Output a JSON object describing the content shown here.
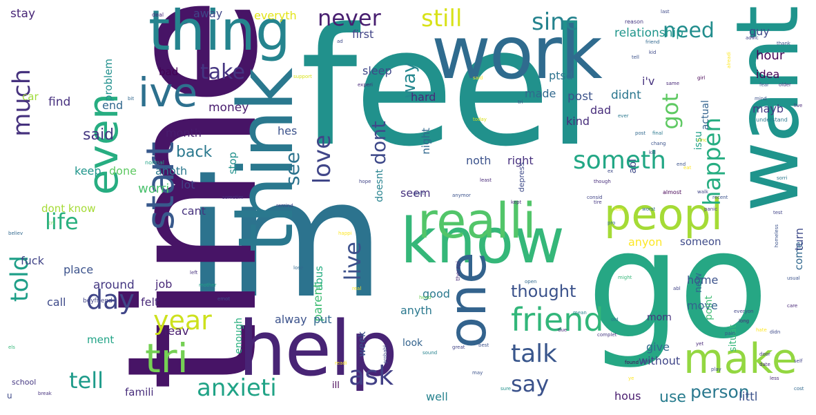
{
  "words": [
    {
      "text": "feel",
      "color": "#21918c"
    },
    {
      "text": "go",
      "color": "#26a784"
    },
    {
      "text": "im",
      "color": "#2c738e"
    },
    {
      "text": "time",
      "color": "#471466"
    },
    {
      "text": "work",
      "color": "#2f6b8e"
    },
    {
      "text": "help",
      "color": "#482475"
    },
    {
      "text": "know",
      "color": "#35b779"
    },
    {
      "text": "want",
      "color": "#1f948c"
    },
    {
      "text": "thing",
      "color": "#25848e"
    },
    {
      "text": "think",
      "color": "#2a788e"
    },
    {
      "text": "one",
      "color": "#33638d"
    },
    {
      "text": "realli",
      "color": "#52c569"
    },
    {
      "text": "peopl",
      "color": "#a5db36"
    },
    {
      "text": "ive",
      "color": "#2d708e"
    },
    {
      "text": "even",
      "color": "#27ad81"
    },
    {
      "text": "start",
      "color": "#38598c"
    },
    {
      "text": "tri",
      "color": "#75d054"
    },
    {
      "text": "make",
      "color": "#93d741"
    },
    {
      "text": "friend",
      "color": "#32b67a"
    },
    {
      "text": "told",
      "color": "#1f9f88"
    },
    {
      "text": "year",
      "color": "#cde11d"
    },
    {
      "text": "day",
      "color": "#404688"
    },
    {
      "text": "talk",
      "color": "#39568c"
    },
    {
      "text": "anxieti",
      "color": "#20a386"
    },
    {
      "text": "ask",
      "color": "#424086"
    },
    {
      "text": "tell",
      "color": "#1e9b8a"
    },
    {
      "text": "say",
      "color": "#3b528b"
    },
    {
      "text": "person",
      "color": "#2a788e"
    },
    {
      "text": "life",
      "color": "#2ab07f"
    },
    {
      "text": "love",
      "color": "#404688"
    },
    {
      "text": "live",
      "color": "#3c508b"
    },
    {
      "text": "dont",
      "color": "#3e4989"
    },
    {
      "text": "see",
      "color": "#2c738e"
    },
    {
      "text": "take",
      "color": "#453581"
    },
    {
      "text": "need",
      "color": "#228d8d"
    },
    {
      "text": "never",
      "color": "#481f70"
    },
    {
      "text": "still",
      "color": "#d8e219"
    },
    {
      "text": "sinc",
      "color": "#25838e"
    },
    {
      "text": "much",
      "color": "#46327e"
    },
    {
      "text": "got",
      "color": "#5ec962"
    },
    {
      "text": "happen",
      "color": "#26ad81"
    },
    {
      "text": "someth",
      "color": "#22a785"
    },
    {
      "text": "way",
      "color": "#24878e"
    },
    {
      "text": "back",
      "color": "#2a788e"
    },
    {
      "text": "said",
      "color": "#453882"
    },
    {
      "text": "thought",
      "color": "#3b528b"
    },
    {
      "text": "use",
      "color": "#287c8e"
    },
    {
      "text": "stay",
      "color": "#482677"
    },
    {
      "text": "away",
      "color": "#404688"
    },
    {
      "text": "everyth",
      "color": "#e2e418"
    },
    {
      "text": "first",
      "color": "#414487"
    },
    {
      "text": "guy",
      "color": "#3e4a89"
    },
    {
      "text": "relationship",
      "color": "#1f958b"
    },
    {
      "text": "hour",
      "color": "#440154"
    },
    {
      "text": "ptsd",
      "color": "#2c728e"
    },
    {
      "text": "post",
      "color": "#3b528b"
    },
    {
      "text": "didnt",
      "color": "#2a768e"
    },
    {
      "text": "idea",
      "color": "#440154"
    },
    {
      "text": "i'v",
      "color": "#46327e"
    },
    {
      "text": "mayb",
      "color": "#443a83"
    },
    {
      "text": "made",
      "color": "#31688e"
    },
    {
      "text": "dad",
      "color": "#472d7b"
    },
    {
      "text": "sleep",
      "color": "#3f4889"
    },
    {
      "text": "bad",
      "color": "#440154"
    },
    {
      "text": "problem",
      "color": "#21908d"
    },
    {
      "text": "hard",
      "color": "#482878"
    },
    {
      "text": "find",
      "color": "#46307e"
    },
    {
      "text": "end",
      "color": "#31688e"
    },
    {
      "text": "car",
      "color": "#9fda3a"
    },
    {
      "text": "money",
      "color": "#481c6e"
    },
    {
      "text": "month",
      "color": "#481c6e"
    },
    {
      "text": "hes",
      "color": "#3b528b"
    },
    {
      "text": "kind",
      "color": "#472d7b"
    },
    {
      "text": "actual",
      "color": "#33638d"
    },
    {
      "text": "issu",
      "color": "#1fa088"
    },
    {
      "text": "abl",
      "color": "#3e4989"
    },
    {
      "text": "stop",
      "color": "#21918c"
    },
    {
      "text": "night",
      "color": "#31688e"
    },
    {
      "text": "noth",
      "color": "#3b528b"
    },
    {
      "text": "right",
      "color": "#46307e"
    },
    {
      "text": "worri",
      "color": "#4ac16d"
    },
    {
      "text": "keep",
      "color": "#1f958b"
    },
    {
      "text": "done",
      "color": "#5ec962"
    },
    {
      "text": "anoth",
      "color": "#2a788e"
    },
    {
      "text": "lot",
      "color": "#424086"
    },
    {
      "text": "doesnt",
      "color": "#26828e"
    },
    {
      "text": "seem",
      "color": "#46327e"
    },
    {
      "text": "dont know",
      "color": "#a5db36"
    },
    {
      "text": "cant",
      "color": "#46327e"
    },
    {
      "text": "anyon",
      "color": "#fde725"
    },
    {
      "text": "someon",
      "color": "#3e4a89"
    },
    {
      "text": "come",
      "color": "#31688e"
    },
    {
      "text": "turn",
      "color": "#3e4a89"
    },
    {
      "text": "fuck",
      "color": "#414487"
    },
    {
      "text": "place",
      "color": "#3b528b"
    },
    {
      "text": "around",
      "color": "#453882"
    },
    {
      "text": "job",
      "color": "#482878"
    },
    {
      "text": "call",
      "color": "#3e4a89"
    },
    {
      "text": "felt",
      "color": "#482878"
    },
    {
      "text": "good",
      "color": "#2a788e"
    },
    {
      "text": "abus",
      "color": "#26ad81"
    },
    {
      "text": "parent",
      "color": "#3fbc73"
    },
    {
      "text": "home",
      "color": "#3b528b"
    },
    {
      "text": "move",
      "color": "#33638d"
    },
    {
      "text": "new",
      "color": "#31688e"
    },
    {
      "text": "point",
      "color": "#3fbc73"
    },
    {
      "text": "situat",
      "color": "#35b779"
    },
    {
      "text": "alway",
      "color": "#3b528b"
    },
    {
      "text": "put",
      "color": "#31688e"
    },
    {
      "text": "anyth",
      "color": "#2a788e"
    },
    {
      "text": "mom",
      "color": "#46327e"
    },
    {
      "text": "ment",
      "color": "#20a386"
    },
    {
      "text": "leav",
      "color": "#481c6e"
    },
    {
      "text": "enough",
      "color": "#29af7f"
    },
    {
      "text": "week",
      "color": "#3b528b"
    },
    {
      "text": "look",
      "color": "#33638d"
    },
    {
      "text": "give",
      "color": "#31688e"
    },
    {
      "text": "without",
      "color": "#404688"
    },
    {
      "text": "famili",
      "color": "#472d7b"
    },
    {
      "text": "ill",
      "color": "#440154"
    },
    {
      "text": "well",
      "color": "#26828e"
    },
    {
      "text": "hous",
      "color": "#481c6e"
    },
    {
      "text": "littl",
      "color": "#3b528b"
    },
    {
      "text": "school",
      "color": "#453882"
    },
    {
      "text": "u",
      "color": "#3e4a89"
    },
    {
      "text": "depress",
      "color": "#3e4a89"
    },
    {
      "text": "boyfriend",
      "color": "#414487"
    },
    {
      "text": "deal",
      "color": "#482878"
    },
    {
      "text": "reason",
      "color": "#453882"
    },
    {
      "text": "girl",
      "color": "#440154"
    },
    {
      "text": "support",
      "color": "#d8e219"
    },
    {
      "text": "experi",
      "color": "#482878"
    },
    {
      "text": "thank",
      "color": "#3b528b"
    },
    {
      "text": "friend",
      "color": "#31688e"
    },
    {
      "text": "normal",
      "color": "#20a386"
    },
    {
      "text": "understand",
      "color": "#2a788e"
    },
    {
      "text": "today",
      "color": "#d8e219"
    },
    {
      "text": "though",
      "color": "#472d7b"
    },
    {
      "text": "almost",
      "color": "#440154"
    },
    {
      "text": "mother",
      "color": "#20a386"
    },
    {
      "text": "believ",
      "color": "#31688e"
    },
    {
      "text": "great",
      "color": "#414487"
    },
    {
      "text": "best",
      "color": "#3b528b"
    },
    {
      "text": "complet",
      "color": "#453882"
    },
    {
      "text": "date",
      "color": "#482878"
    },
    {
      "text": "break",
      "color": "#46327e"
    },
    {
      "text": "found",
      "color": "#440154"
    },
    {
      "text": "pay",
      "color": "#453882"
    },
    {
      "text": "hate",
      "color": "#fde725"
    },
    {
      "text": "long",
      "color": "#482878"
    },
    {
      "text": "sometim",
      "color": "#46327e"
    },
    {
      "text": "readi",
      "color": "#fde725"
    },
    {
      "text": "therapi",
      "color": "#482878"
    },
    {
      "text": "sound",
      "color": "#26828e"
    },
    {
      "text": "ever",
      "color": "#2a788e"
    },
    {
      "text": "els",
      "color": "#35b779"
    },
    {
      "text": "ye",
      "color": "#fde725"
    },
    {
      "text": "yet",
      "color": "#482878"
    },
    {
      "text": "head",
      "color": "#6ece58"
    },
    {
      "text": "may",
      "color": "#3b528b"
    },
    {
      "text": "everyon",
      "color": "#414487"
    },
    {
      "text": "left",
      "color": "#46327e"
    },
    {
      "text": "last",
      "color": "#3e4a89"
    },
    {
      "text": "sinc",
      "color": "#d8e219"
    },
    {
      "text": "eat",
      "color": "#fde725"
    },
    {
      "text": "kill",
      "color": "#414487"
    },
    {
      "text": "end",
      "color": "#3b528b"
    },
    {
      "text": "less",
      "color": "#fde725"
    },
    {
      "text": "hope",
      "color": "#414487"
    },
    {
      "text": "part",
      "color": "#3e4a89"
    },
    {
      "text": "least",
      "color": "#482878"
    },
    {
      "text": "final",
      "color": "#2a788e"
    },
    {
      "text": "post",
      "color": "#31688e"
    },
    {
      "text": "chang",
      "color": "#3b528b"
    },
    {
      "text": "consid",
      "color": "#414487"
    },
    {
      "text": "recent",
      "color": "#3b528b"
    },
    {
      "text": "anymor",
      "color": "#3b528b"
    },
    {
      "text": "tire",
      "color": "#453882"
    },
    {
      "text": "probabl",
      "color": "#3e4a89"
    },
    {
      "text": "open",
      "color": "#31688e"
    },
    {
      "text": "might",
      "color": "#35b779"
    },
    {
      "text": "due",
      "color": "#482878"
    },
    {
      "text": "mean",
      "color": "#26828e"
    },
    {
      "text": "lose",
      "color": "#31688e"
    },
    {
      "text": "same",
      "color": "#482878"
    },
    {
      "text": "kid",
      "color": "#3e4a89"
    },
    {
      "text": "tri",
      "color": "#3b528b"
    },
    {
      "text": "older",
      "color": "#46327e"
    },
    {
      "text": "advic",
      "color": "#414487"
    },
    {
      "text": "alreadi",
      "color": "#fde725"
    },
    {
      "text": "fear",
      "color": "#3b528b"
    },
    {
      "text": "sure",
      "color": "#21918c"
    },
    {
      "text": "ad",
      "color": "#3e4a89"
    },
    {
      "text": "mind",
      "color": "#3b528b"
    },
    {
      "text": "remind",
      "color": "#414487"
    },
    {
      "text": "homeless",
      "color": "#3b528b"
    },
    {
      "text": "pro",
      "color": "#31688e"
    },
    {
      "text": "real",
      "color": "#fde725"
    },
    {
      "text": "emot",
      "color": "#3e4a89"
    },
    {
      "text": "worst",
      "color": "#31688e"
    },
    {
      "text": "old",
      "color": "#2a788e"
    },
    {
      "text": "cri",
      "color": "#6ece58"
    },
    {
      "text": "walk",
      "color": "#414487"
    },
    {
      "text": "door",
      "color": "#453882"
    },
    {
      "text": "play",
      "color": "#3e4a89"
    },
    {
      "text": "pain",
      "color": "#3b528b"
    },
    {
      "text": "care",
      "color": "#482878"
    },
    {
      "text": "panic",
      "color": "#453882"
    },
    {
      "text": "test",
      "color": "#414487"
    },
    {
      "text": "didn",
      "color": "#3e4a89"
    },
    {
      "text": "sorri",
      "color": "#2a788e"
    },
    {
      "text": "usual",
      "color": "#3b528b"
    },
    {
      "text": "kept",
      "color": "#482878"
    },
    {
      "text": "happi",
      "color": "#fde725"
    },
    {
      "text": "tell",
      "color": "#3b528b"
    },
    {
      "text": "less",
      "color": "#482878"
    },
    {
      "text": "bit",
      "color": "#31688e"
    },
    {
      "text": "ex",
      "color": "#3e4a89"
    },
    {
      "text": "abl",
      "color": "#414487"
    },
    {
      "text": "cost",
      "color": "#31688e"
    },
    {
      "text": "said",
      "color": "#fde725"
    },
    {
      "text": "live",
      "color": "#482878"
    },
    {
      "text": "self",
      "color": "#414487"
    }
  ]
}
